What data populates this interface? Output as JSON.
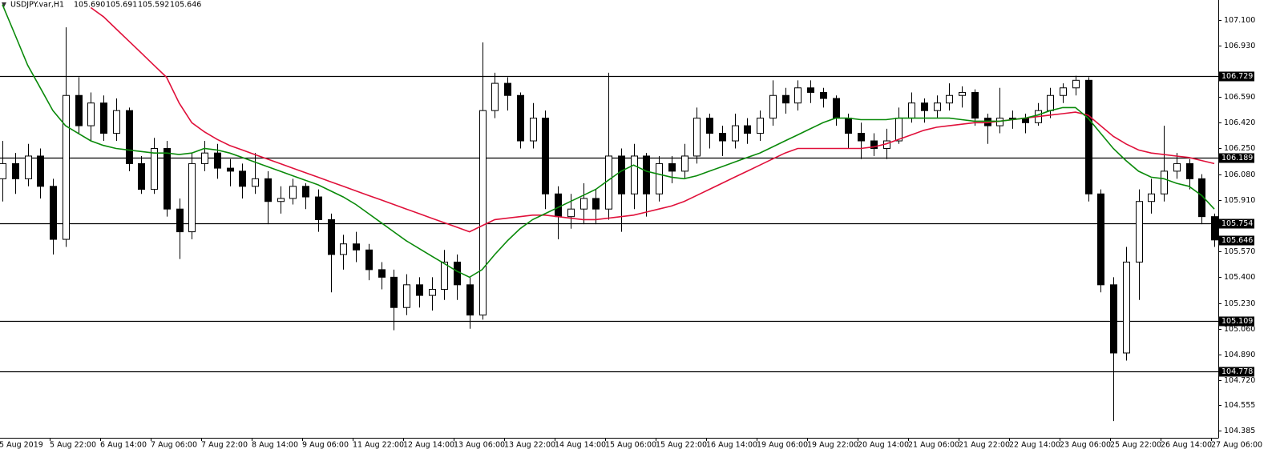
{
  "chart_data": {
    "type": "candlestick",
    "symbol": "USDJPY.var,H1",
    "header_values": [
      {
        "value": 105.69,
        "label": "105.690"
      },
      {
        "value": 105.691,
        "label": "105.691"
      },
      {
        "value": 105.592,
        "label": "105.592"
      },
      {
        "value": 105.646,
        "label": "105.646"
      }
    ],
    "categories": [
      "5 Aug 2019",
      null,
      null,
      null,
      "5 Aug 22:00",
      null,
      null,
      null,
      "6 Aug 14:00",
      null,
      null,
      null,
      "7 Aug 06:00",
      null,
      null,
      null,
      "7 Aug 22:00",
      null,
      null,
      null,
      "8 Aug 14:00",
      null,
      null,
      null,
      "9 Aug 06:00",
      null,
      null,
      null,
      "11 Aug 22:00",
      null,
      null,
      null,
      "12 Aug 14:00",
      null,
      null,
      null,
      "13 Aug 06:00",
      null,
      null,
      null,
      "13 Aug 22:00",
      null,
      null,
      null,
      "14 Aug 14:00",
      null,
      null,
      null,
      "15 Aug 06:00",
      null,
      null,
      null,
      "15 Aug 22:00",
      null,
      null,
      null,
      "16 Aug 14:00",
      null,
      null,
      null,
      "19 Aug 06:00",
      null,
      null,
      null,
      "19 Aug 22:00",
      null,
      null,
      null,
      "20 Aug 14:00",
      null,
      null,
      null,
      "21 Aug 06:00",
      null,
      null,
      null,
      "21 Aug 22:00",
      null,
      null,
      null,
      "22 Aug 14:00",
      null,
      null,
      null,
      "23 Aug 06:00",
      null,
      null,
      null,
      "25 Aug 22:00",
      null,
      null,
      null,
      "26 Aug 14:00",
      null,
      null,
      null,
      "27 Aug 06:00"
    ],
    "open": [
      106.05,
      106.15,
      106.05,
      106.2,
      106.0,
      105.65,
      106.6,
      106.4,
      106.55,
      106.35,
      106.5,
      106.15,
      105.98,
      106.25,
      105.85,
      105.7,
      106.15,
      106.22,
      106.12,
      106.1,
      106.0,
      106.05,
      105.9,
      105.92,
      106.0,
      105.93,
      105.78,
      105.55,
      105.62,
      105.58,
      105.45,
      105.4,
      105.2,
      105.35,
      105.28,
      105.32,
      105.5,
      105.35,
      105.15,
      106.5,
      106.68,
      106.6,
      106.3,
      106.45,
      105.95,
      105.8,
      105.85,
      105.92,
      105.85,
      106.2,
      105.95,
      106.2,
      105.95,
      106.15,
      106.1,
      106.2,
      106.45,
      106.35,
      106.3,
      106.4,
      106.35,
      106.45,
      106.6,
      106.55,
      106.65,
      106.62,
      106.58,
      106.45,
      106.35,
      106.3,
      106.25,
      106.3,
      106.45,
      106.55,
      106.5,
      106.55,
      106.6,
      106.62,
      106.45,
      106.4,
      106.45,
      106.45,
      106.42,
      106.5,
      106.6,
      106.65,
      106.7,
      105.95,
      105.35,
      104.9,
      105.5,
      105.9,
      105.95,
      106.1,
      106.15,
      106.05,
      105.8
    ],
    "high": [
      106.3,
      106.22,
      106.28,
      106.25,
      106.05,
      107.05,
      106.72,
      106.62,
      106.6,
      106.58,
      106.52,
      106.2,
      106.32,
      106.3,
      105.92,
      106.22,
      106.3,
      106.28,
      106.18,
      106.15,
      106.22,
      106.1,
      106.0,
      106.05,
      106.02,
      105.98,
      105.82,
      105.68,
      105.7,
      105.62,
      105.5,
      105.45,
      105.42,
      105.4,
      105.4,
      105.58,
      105.55,
      105.4,
      106.95,
      106.75,
      106.72,
      106.62,
      106.55,
      106.5,
      106.0,
      105.95,
      106.02,
      105.98,
      106.75,
      106.25,
      106.28,
      106.22,
      106.2,
      106.2,
      106.28,
      106.52,
      106.48,
      106.4,
      106.48,
      106.45,
      106.5,
      106.7,
      106.65,
      106.7,
      106.7,
      106.65,
      106.6,
      106.48,
      106.42,
      106.35,
      106.38,
      106.52,
      106.62,
      106.58,
      106.6,
      106.68,
      106.66,
      106.64,
      106.48,
      106.65,
      106.5,
      106.48,
      106.55,
      106.65,
      106.68,
      106.73,
      106.72,
      105.98,
      105.4,
      105.6,
      105.98,
      106.05,
      106.4,
      106.22,
      106.18,
      106.08,
      105.82
    ],
    "low": [
      105.9,
      105.95,
      106.0,
      105.92,
      105.55,
      105.6,
      106.35,
      106.3,
      106.3,
      106.3,
      106.1,
      105.95,
      105.95,
      105.8,
      105.52,
      105.65,
      106.1,
      106.05,
      106.0,
      105.92,
      105.95,
      105.75,
      105.82,
      105.88,
      105.85,
      105.7,
      105.3,
      105.45,
      105.5,
      105.38,
      105.32,
      105.05,
      105.15,
      105.2,
      105.18,
      105.25,
      105.25,
      105.06,
      105.12,
      106.45,
      106.5,
      106.25,
      106.25,
      105.85,
      105.65,
      105.72,
      105.75,
      105.75,
      105.78,
      105.7,
      105.85,
      105.8,
      105.9,
      106.02,
      106.05,
      106.15,
      106.25,
      106.2,
      106.25,
      106.28,
      106.3,
      106.4,
      106.48,
      106.5,
      106.55,
      106.52,
      106.4,
      106.25,
      106.18,
      106.2,
      106.18,
      106.28,
      106.42,
      106.42,
      106.45,
      106.5,
      106.52,
      106.4,
      106.28,
      106.35,
      106.38,
      106.35,
      106.4,
      106.45,
      106.55,
      106.6,
      105.9,
      105.3,
      104.45,
      104.85,
      105.25,
      105.82,
      105.9,
      106.05,
      105.98,
      105.75,
      105.6
    ],
    "close": [
      106.15,
      106.05,
      106.2,
      106.0,
      105.65,
      106.6,
      106.4,
      106.55,
      106.35,
      106.5,
      106.15,
      105.98,
      106.25,
      105.85,
      105.7,
      106.15,
      106.22,
      106.12,
      106.1,
      106.0,
      106.05,
      105.9,
      105.92,
      106.0,
      105.93,
      105.78,
      105.55,
      105.62,
      105.58,
      105.45,
      105.4,
      105.2,
      105.35,
      105.28,
      105.32,
      105.5,
      105.35,
      105.15,
      106.5,
      106.68,
      106.6,
      106.3,
      106.45,
      105.95,
      105.8,
      105.85,
      105.92,
      105.85,
      106.2,
      105.95,
      106.2,
      105.95,
      106.15,
      106.1,
      106.2,
      106.45,
      106.35,
      106.3,
      106.4,
      106.35,
      106.45,
      106.6,
      106.55,
      106.65,
      106.62,
      106.58,
      106.45,
      106.35,
      106.3,
      106.25,
      106.3,
      106.45,
      106.55,
      106.5,
      106.55,
      106.6,
      106.62,
      106.45,
      106.4,
      106.45,
      106.45,
      106.42,
      106.5,
      106.6,
      106.65,
      106.7,
      105.95,
      105.35,
      104.9,
      105.5,
      105.9,
      105.95,
      106.1,
      106.15,
      106.05,
      105.8,
      105.646
    ],
    "moving_averages": [
      {
        "color": "#e0103a",
        "values": [
          null,
          null,
          null,
          null,
          null,
          null,
          null,
          107.18,
          107.12,
          107.04,
          106.96,
          106.88,
          106.8,
          106.72,
          106.55,
          106.42,
          106.36,
          106.31,
          106.27,
          106.24,
          106.21,
          106.18,
          106.15,
          106.12,
          106.09,
          106.06,
          106.03,
          106.0,
          105.97,
          105.94,
          105.91,
          105.88,
          105.85,
          105.82,
          105.79,
          105.76,
          105.73,
          105.7,
          105.74,
          105.78,
          105.79,
          105.8,
          105.81,
          105.81,
          105.8,
          105.79,
          105.78,
          105.78,
          105.79,
          105.8,
          105.81,
          105.83,
          105.85,
          105.87,
          105.9,
          105.94,
          105.98,
          106.02,
          106.06,
          106.1,
          106.14,
          106.18,
          106.22,
          106.25,
          106.25,
          106.25,
          106.25,
          106.25,
          106.25,
          106.26,
          106.28,
          106.31,
          106.34,
          106.37,
          106.39,
          106.4,
          106.41,
          106.42,
          106.42,
          106.43,
          106.44,
          106.45,
          106.46,
          106.47,
          106.48,
          106.49,
          106.47,
          106.4,
          106.33,
          106.28,
          106.24,
          106.22,
          106.21,
          106.2,
          106.19,
          106.17,
          106.15
        ]
      },
      {
        "color": "#0a8a0a",
        "values": [
          107.2,
          107.0,
          106.8,
          106.65,
          106.5,
          106.4,
          106.35,
          106.3,
          106.27,
          106.25,
          106.24,
          106.23,
          106.22,
          106.22,
          106.21,
          106.22,
          106.25,
          106.24,
          106.22,
          106.19,
          106.16,
          106.13,
          106.1,
          106.07,
          106.04,
          106.01,
          105.97,
          105.93,
          105.88,
          105.82,
          105.76,
          105.7,
          105.64,
          105.59,
          105.54,
          105.49,
          105.44,
          105.4,
          105.45,
          105.55,
          105.64,
          105.72,
          105.78,
          105.82,
          105.86,
          105.9,
          105.94,
          105.98,
          106.04,
          106.1,
          106.14,
          106.1,
          106.08,
          106.06,
          106.05,
          106.07,
          106.1,
          106.13,
          106.16,
          106.19,
          106.22,
          106.26,
          106.3,
          106.34,
          106.38,
          106.42,
          106.45,
          106.45,
          106.44,
          106.44,
          106.44,
          106.45,
          106.45,
          106.45,
          106.45,
          106.45,
          106.44,
          106.43,
          106.43,
          106.43,
          106.44,
          106.45,
          106.47,
          106.5,
          106.52,
          106.52,
          106.45,
          106.35,
          106.25,
          106.17,
          106.1,
          106.06,
          106.05,
          106.02,
          106.0,
          105.94,
          105.85
        ]
      }
    ],
    "ylim": [
      104.34,
      107.23
    ],
    "yticks": [
      {
        "value": 107.1,
        "label": "107.100"
      },
      {
        "value": 106.93,
        "label": "106.930"
      },
      {
        "value": 106.59,
        "label": "106.590"
      },
      {
        "value": 106.42,
        "label": "106.420"
      },
      {
        "value": 106.25,
        "label": "106.250"
      },
      {
        "value": 106.08,
        "label": "106.080"
      },
      {
        "value": 105.91,
        "label": "105.910"
      },
      {
        "value": 105.57,
        "label": "105.570"
      },
      {
        "value": 105.4,
        "label": "105.400"
      },
      {
        "value": 105.23,
        "label": "105.230"
      },
      {
        "value": 105.06,
        "label": "105.060"
      },
      {
        "value": 104.89,
        "label": "104.890"
      },
      {
        "value": 104.72,
        "label": "104.720"
      },
      {
        "value": 104.555,
        "label": "104.555"
      },
      {
        "value": 104.385,
        "label": "104.385"
      }
    ],
    "levels": [
      {
        "value": 106.729,
        "label": "106.729"
      },
      {
        "value": 106.189,
        "label": "106.189"
      },
      {
        "value": 105.754,
        "label": "105.754"
      },
      {
        "value": 105.109,
        "label": "105.109"
      },
      {
        "value": 104.778,
        "label": "104.778"
      }
    ],
    "last_price": {
      "value": 105.646,
      "label": "105.646"
    },
    "bull_color": "#ffffff",
    "bear_color": "#000000"
  }
}
